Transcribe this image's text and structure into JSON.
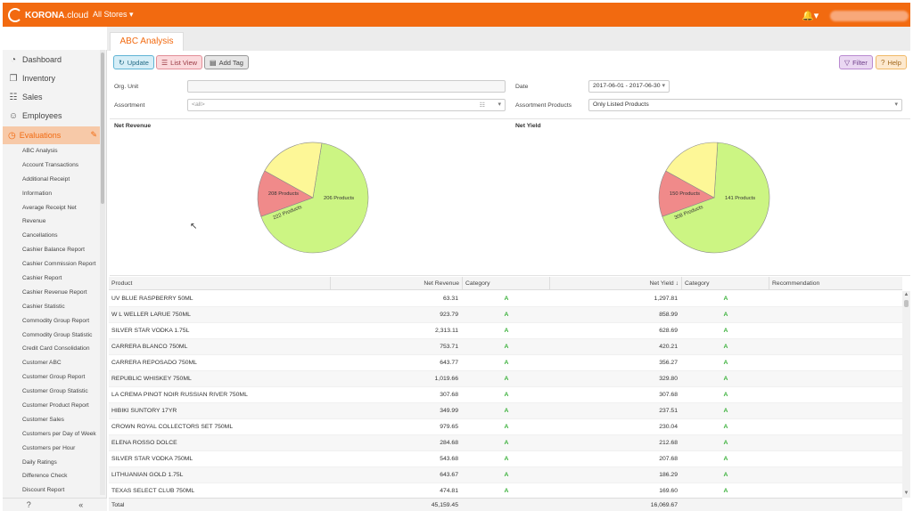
{
  "app": {
    "logo_brand": "KORONA",
    "logo_suffix": ".cloud",
    "store_selector": "All Stores ▾",
    "bell": "🔔▾"
  },
  "colors": {
    "brand": "#f26a10",
    "pie_a": "#ccf583",
    "pie_b": "#fdf797",
    "pie_c": "#f08a8a"
  },
  "sidebar": {
    "items": [
      {
        "label": "Dashboard",
        "icon": "dashboard-icon",
        "glyph": "◔"
      },
      {
        "label": "Inventory",
        "icon": "inventory-box-icon",
        "glyph": "❐"
      },
      {
        "label": "Sales",
        "icon": "sales-receipt-icon",
        "glyph": "☷"
      },
      {
        "label": "Employees",
        "icon": "employees-person-icon",
        "glyph": "☺"
      }
    ],
    "active_section": {
      "label": "Evaluations",
      "icon": "evaluations-clock-icon",
      "glyph": "◷",
      "edit_glyph": "✎"
    },
    "sub_items": [
      "ABC Analysis",
      "Account Transactions",
      "Additional Receipt",
      "Information",
      "Average Receipt Net",
      "Revenue",
      "Cancellations",
      "Cashier Balance Report",
      "Cashier Commission Report",
      "Cashier Report",
      "Cashier Revenue Report",
      "Cashier Statistic",
      "Commodity Group Report",
      "Commodity Group Statistic",
      "Credit Card Consolidation",
      "Customer ABC",
      "Customer Group Report",
      "Customer Group Statistic",
      "Customer Product Report",
      "Customer Sales",
      "Customers per Day of Week",
      "Customers per Hour",
      "Daily Ratings",
      "Difference Check",
      "Discount Report"
    ],
    "footer": {
      "help_glyph": "?",
      "collapse_glyph": "«"
    }
  },
  "tab": {
    "label": "ABC Analysis"
  },
  "toolbar": {
    "update": "Update",
    "update_glyph": "↻",
    "list_view": "List View",
    "list_glyph": "☰",
    "add_tag": "Add Tag",
    "tag_glyph": "▤",
    "filter": "Filter",
    "filter_glyph": "▽",
    "help": "Help",
    "help_glyph": "?"
  },
  "form": {
    "org_unit_label": "Org. Unit",
    "org_unit_value": "",
    "date_label": "Date",
    "date_value": "2017-06-01 - 2017-06-30",
    "assortment_label": "Assortment",
    "assortment_value": "<all>",
    "assortment_products_label": "Assortment Products",
    "assortment_products_value": "Only Listed Products",
    "caret": "▾",
    "list_glyph": "☷"
  },
  "chart_data": [
    {
      "type": "pie",
      "title": "Net Revenue",
      "slices": [
        {
          "label": "206 Products",
          "value": 206,
          "color": "#ccf583"
        },
        {
          "label": "222 Products",
          "value": 42,
          "color": "#f08a8a"
        },
        {
          "label": "208 Products",
          "value": 60,
          "color": "#fdf797"
        }
      ]
    },
    {
      "type": "pie",
      "title": "Net Yield",
      "slices": [
        {
          "label": "141 Products",
          "value": 141,
          "color": "#ccf583"
        },
        {
          "label": "308 Products",
          "value": 28,
          "color": "#f08a8a"
        },
        {
          "label": "150 Products",
          "value": 37,
          "color": "#fdf797"
        }
      ]
    }
  ],
  "table": {
    "columns": [
      "Product",
      "Net Revenue",
      "Category",
      "Net Yield ↓",
      "Category",
      "Recommendation"
    ],
    "rows": [
      {
        "product": "UV BLUE RASPBERRY 50ML",
        "net_revenue": "63.31",
        "cat1": "A",
        "net_yield": "1,297.81",
        "cat2": "A",
        "rec": ""
      },
      {
        "product": "W L WELLER LARUE 750ML",
        "net_revenue": "923.79",
        "cat1": "A",
        "net_yield": "858.99",
        "cat2": "A",
        "rec": ""
      },
      {
        "product": "SILVER STAR VODKA 1.75L",
        "net_revenue": "2,313.11",
        "cat1": "A",
        "net_yield": "628.69",
        "cat2": "A",
        "rec": ""
      },
      {
        "product": "CARRERA BLANCO 750ML",
        "net_revenue": "753.71",
        "cat1": "A",
        "net_yield": "420.21",
        "cat2": "A",
        "rec": ""
      },
      {
        "product": "CARRERA REPOSADO 750ML",
        "net_revenue": "643.77",
        "cat1": "A",
        "net_yield": "356.27",
        "cat2": "A",
        "rec": ""
      },
      {
        "product": "REPUBLIC WHISKEY 750ML",
        "net_revenue": "1,019.66",
        "cat1": "A",
        "net_yield": "329.80",
        "cat2": "A",
        "rec": ""
      },
      {
        "product": "LA CREMA PINOT NOIR RUSSIAN RIVER 750ML",
        "net_revenue": "307.68",
        "cat1": "A",
        "net_yield": "307.68",
        "cat2": "A",
        "rec": ""
      },
      {
        "product": "HIBIKI SUNTORY 17YR",
        "net_revenue": "349.99",
        "cat1": "A",
        "net_yield": "237.51",
        "cat2": "A",
        "rec": ""
      },
      {
        "product": "CROWN ROYAL COLLECTORS SET 750ML",
        "net_revenue": "979.65",
        "cat1": "A",
        "net_yield": "230.04",
        "cat2": "A",
        "rec": ""
      },
      {
        "product": "ELENA ROSSO DOLCE",
        "net_revenue": "284.68",
        "cat1": "A",
        "net_yield": "212.68",
        "cat2": "A",
        "rec": ""
      },
      {
        "product": "SILVER STAR VODKA 750ML",
        "net_revenue": "543.68",
        "cat1": "A",
        "net_yield": "207.68",
        "cat2": "A",
        "rec": ""
      },
      {
        "product": "LITHUANIAN GOLD 1.75L",
        "net_revenue": "643.67",
        "cat1": "A",
        "net_yield": "186.29",
        "cat2": "A",
        "rec": ""
      },
      {
        "product": "TEXAS SELECT CLUB 750ML",
        "net_revenue": "474.81",
        "cat1": "A",
        "net_yield": "169.60",
        "cat2": "A",
        "rec": ""
      }
    ],
    "footer": {
      "label": "Total",
      "net_revenue": "45,159.45",
      "net_yield": "16,069.67"
    }
  },
  "scrollbar": {
    "up": "▲",
    "down": "▼"
  }
}
